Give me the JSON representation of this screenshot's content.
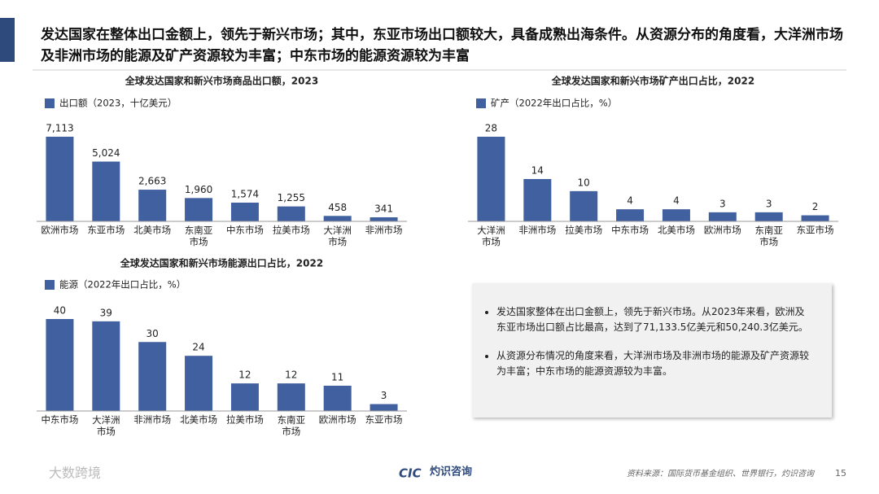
{
  "header": {
    "title": "发达国家在整体出口金额上，领先于新兴市场；其中，东亚市场出口额较大，具备成熟出海条件。从资源分布的角度看，大洋洲市场及非洲市场的能源及矿产资源较为丰富；中东市场的能源资源较为丰富"
  },
  "chart_data": [
    {
      "type": "bar",
      "title": "全球发达国家和新兴市场商品出口额，2023",
      "categories": [
        "欧洲市场",
        "东亚市场",
        "北美市场",
        "东南亚市场",
        "中东市场",
        "拉美市场",
        "大洋洲市场",
        "非洲市场"
      ],
      "series": [
        {
          "name": "出口额（2023，十亿美元）",
          "color": "#41609f",
          "values": [
            7113,
            5024,
            2663,
            1960,
            1574,
            1255,
            458,
            341
          ],
          "value_labels": [
            "7,113",
            "5,024",
            "2,663",
            "1,960",
            "1,574",
            "1,255",
            "458",
            "341"
          ]
        }
      ]
    },
    {
      "type": "bar",
      "title": "全球发达国家和新兴市场矿产出口占比，2022",
      "categories": [
        "大洋洲市场",
        "非洲市场",
        "拉美市场",
        "中东市场",
        "北美市场",
        "欧洲市场",
        "东南亚市场",
        "东亚市场"
      ],
      "series": [
        {
          "name": "矿产（2022年出口占比，%）",
          "color": "#41609f",
          "values": [
            28,
            14,
            10,
            4,
            4,
            3,
            3,
            2
          ]
        }
      ]
    },
    {
      "type": "bar",
      "title": "全球发达国家和新兴市场能源出口占比，2022",
      "categories": [
        "中东市场",
        "大洋洲市场",
        "非洲市场",
        "北美市场",
        "拉美市场",
        "东南亚市场",
        "欧洲市场",
        "东亚市场"
      ],
      "series": [
        {
          "name": "能源（2022年出口占比，%）",
          "color": "#41609f",
          "values": [
            40,
            39,
            30,
            24,
            12,
            12,
            11,
            3
          ]
        }
      ]
    }
  ],
  "notes": [
    "发达国家整体在出口金额上，领先于新兴市场。从2023年来看，欧洲及东亚市场出口额占比最高，达到了71,133.5亿美元和50,240.3亿美元。",
    "从资源分布情况的角度来看，大洋洲市场及非洲市场的能源及矿产资源较为丰富；中东市场的能源资源较为丰富。"
  ],
  "footer": {
    "watermark": "大数跨境",
    "logo": "CIC",
    "logo_name": "灼识咨询",
    "source": "资料来源：国际货币基金组织、世界银行，灼识咨询",
    "page": "15"
  }
}
